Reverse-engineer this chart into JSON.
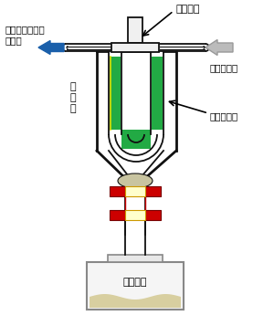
{
  "bg_color": "#ffffff",
  "heater_label": "ヒーター",
  "left_arrow_label": "水素・メタン混\n合ガス",
  "right_arrow_label": "メタンガス",
  "reactor_label": "反\n応\n炉",
  "catalyst_label": "金属触媒板",
  "carbon_label": "生成炭素",
  "green_fill": "#22aa44",
  "red_block_color": "#cc0000",
  "gray_arrow_color": "#aaaaaa",
  "blue_arrow_color": "#1a5faa",
  "sand_color": "#d8cfa0",
  "line_color": "#111111",
  "line_color2": "#333333"
}
